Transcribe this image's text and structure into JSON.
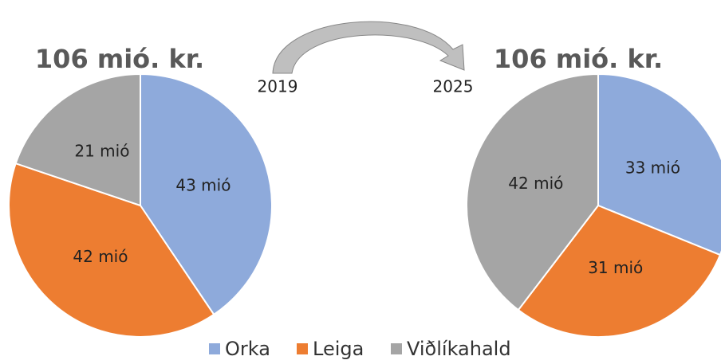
{
  "chart_data": [
    {
      "type": "pie",
      "title": "106 mió. kr.",
      "annotation": "2019",
      "categories": [
        "Orka",
        "Leiga",
        "Viðlíkahald"
      ],
      "colors": [
        "#8eaadb",
        "#ed7d31",
        "#a5a5a5"
      ],
      "values": [
        43,
        42,
        21
      ],
      "value_labels": [
        "43 mió",
        "42 mió",
        "21 mió"
      ]
    },
    {
      "type": "pie",
      "title": "106 mió. kr.",
      "annotation": "2025",
      "colors": [
        "#8eaadb",
        "#ed7d31",
        "#a5a5a5"
      ],
      "values": [
        33,
        31,
        42
      ],
      "value_labels": [
        "33 mió",
        "31 mió",
        "42 mió"
      ]
    }
  ]
}
